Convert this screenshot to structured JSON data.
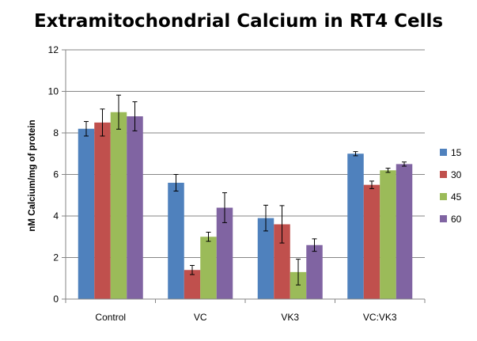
{
  "chart_data": {
    "type": "bar",
    "title": "Extramitochondrial Calcium in RT4 Cells",
    "xlabel": "",
    "ylabel": "nM Calcium/mg of protein",
    "ylim": [
      0,
      12
    ],
    "yticks": [
      0,
      2,
      4,
      6,
      8,
      10,
      12
    ],
    "grid": true,
    "legend_position": "right",
    "categories": [
      "Control",
      "VC",
      "VK3",
      "VC:VK3"
    ],
    "series": [
      {
        "name": "15",
        "color": "#4f81bd",
        "values": [
          8.2,
          5.6,
          3.9,
          7.0
        ],
        "errors": [
          0.35,
          0.4,
          0.62,
          0.1
        ]
      },
      {
        "name": "30",
        "color": "#c0504d",
        "values": [
          8.5,
          1.4,
          3.6,
          5.5
        ],
        "errors": [
          0.65,
          0.22,
          0.9,
          0.18
        ]
      },
      {
        "name": "45",
        "color": "#9bbb59",
        "values": [
          9.0,
          3.0,
          1.3,
          6.2
        ],
        "errors": [
          0.82,
          0.22,
          0.62,
          0.1
        ]
      },
      {
        "name": "60",
        "color": "#8064a2",
        "values": [
          8.8,
          4.4,
          2.6,
          6.5
        ],
        "errors": [
          0.7,
          0.72,
          0.3,
          0.1
        ]
      }
    ]
  }
}
